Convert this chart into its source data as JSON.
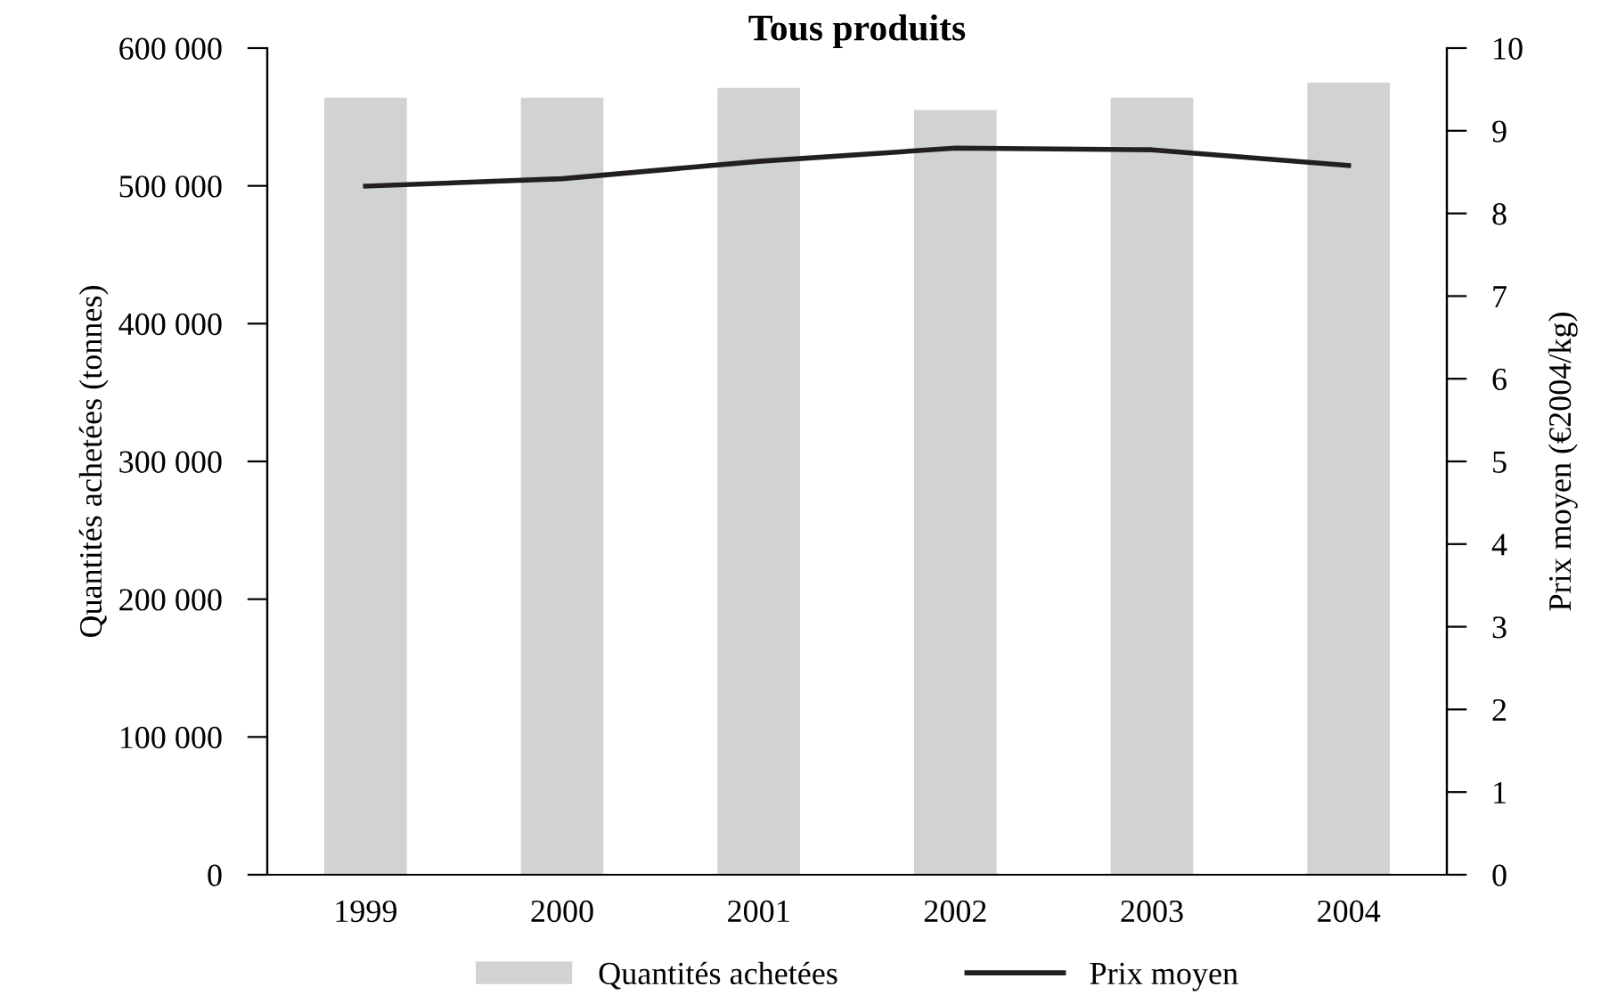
{
  "chart_data": {
    "type": "bar",
    "title": "Tous produits",
    "ylabel": "Quantités achetées (tonnes)",
    "y2label": "Prix moyen (€2004/kg)",
    "categories": [
      "1999",
      "2000",
      "2001",
      "2002",
      "2003",
      "2004"
    ],
    "series": [
      {
        "name": "Quantités achetées",
        "color": "#d1d2d4",
        "values": [
          564000,
          564000,
          571000,
          555000,
          564000,
          575000
        ]
      },
      {
        "name": "Prix moyen",
        "type": "line",
        "axis": "y2",
        "color": "#231f20",
        "values": [
          8.33,
          8.42,
          8.63,
          8.79,
          8.77,
          8.58
        ]
      }
    ],
    "ylim": [
      0,
      600000
    ],
    "yticks": [
      {
        "value": 0,
        "label": "0"
      },
      {
        "value": 100000,
        "label": "100 000"
      },
      {
        "value": 200000,
        "label": "200 000"
      },
      {
        "value": 300000,
        "label": "300 000"
      },
      {
        "value": 400000,
        "label": "400 000"
      },
      {
        "value": 500000,
        "label": "500 000"
      },
      {
        "value": 600000,
        "label": "600 000"
      }
    ],
    "y2lim": [
      0,
      10
    ],
    "y2ticks": [
      0,
      1,
      2,
      3,
      4,
      5,
      6,
      7,
      8,
      9,
      10
    ],
    "grid": false,
    "legend": "bottom",
    "marker": "none"
  }
}
